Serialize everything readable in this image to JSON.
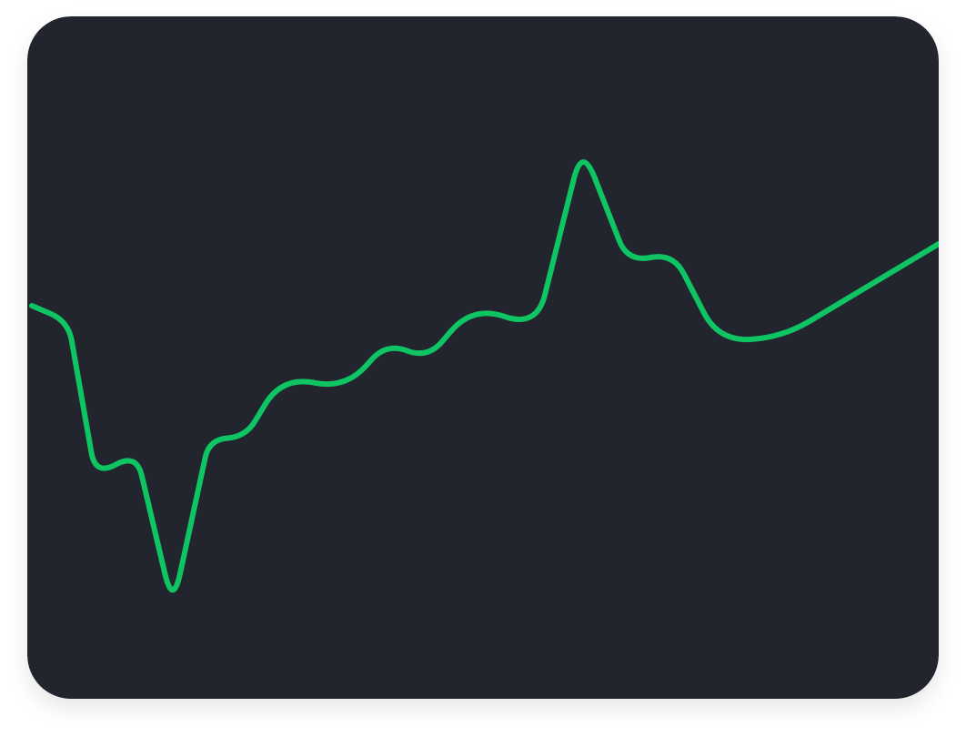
{
  "theme": {
    "background": "#22252e",
    "line_color": "#0ec463",
    "cursor_color": "#5a5f6d"
  },
  "chart_data": {
    "type": "line",
    "title": "",
    "xlabel": "",
    "ylabel": "",
    "axes_visible": false,
    "grid": false,
    "legend": "none",
    "ylim": [
      0,
      750
    ],
    "hover_index": 13,
    "series": [
      {
        "x": [
          0,
          1,
          2,
          3,
          4,
          5,
          6,
          7,
          8,
          9,
          10,
          11,
          12,
          13,
          14,
          15,
          16,
          17,
          18
        ],
        "values": [
          432,
          415,
          245,
          270,
          101,
          285,
          288,
          354,
          341,
          391,
          374,
          432,
          408,
          608,
          480,
          490,
          393,
          397,
          500
        ]
      }
    ]
  }
}
